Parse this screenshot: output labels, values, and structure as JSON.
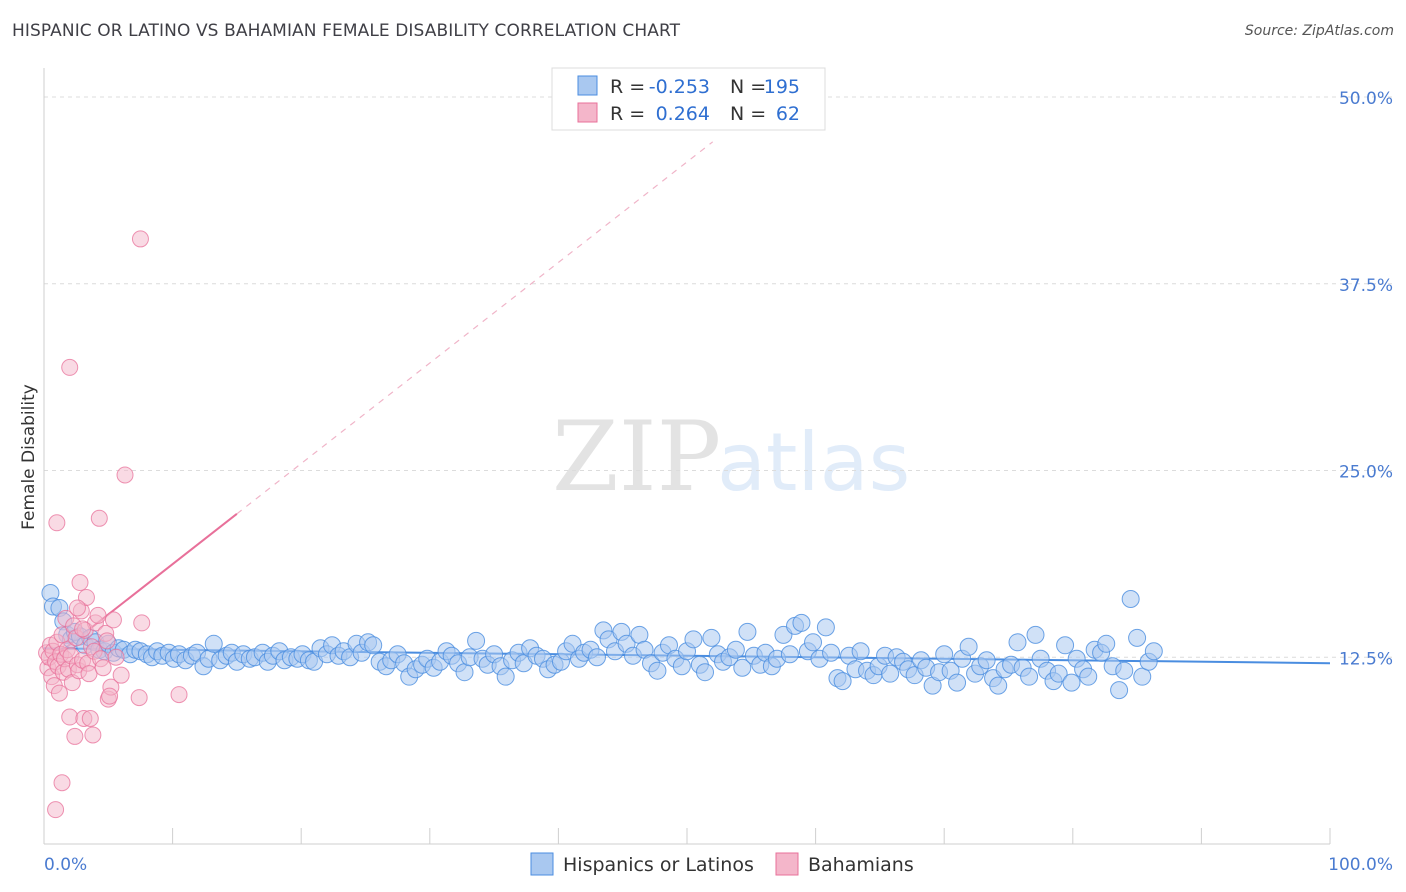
{
  "title": "HISPANIC OR LATINO VS BAHAMIAN FEMALE DISABILITY CORRELATION CHART",
  "source": "Source: ZipAtlas.com",
  "watermark": {
    "zip": "ZIP",
    "atlas": "atlas"
  },
  "colors": {
    "blue": "#4a8de0",
    "blue_fill": "#a9c8f0",
    "pink": "#e8709a",
    "pink_fill": "#f4b6ca",
    "grid": "#d9d9d9",
    "tick_text": "#4a7bd0"
  },
  "legend": {
    "rows": [
      {
        "r_label": "R =",
        "r_value": "-0.253",
        "n_label": "N =",
        "n_value": "195"
      },
      {
        "r_label": "R =",
        "r_value": "0.264",
        "n_label": "N =",
        "n_value": "62"
      }
    ]
  },
  "chart_data": {
    "type": "scatter",
    "xlabel": "",
    "ylabel": "Female Disability",
    "xlim": [
      0,
      100
    ],
    "ylim": [
      0,
      50
    ],
    "x_tick_labels": [
      "0.0%",
      "100.0%"
    ],
    "y_ticks": [
      12.5,
      25.0,
      37.5,
      50.0
    ],
    "y_tick_labels": [
      "12.5%",
      "25.0%",
      "37.5%",
      "50.0%"
    ],
    "grid": true,
    "legend_position": "top-center",
    "series": [
      {
        "name": "Hispanics or Latinos",
        "color": "#4a8de0",
        "trend": {
          "x": [
            0,
            100
          ],
          "y": [
            13.1,
            12.1
          ],
          "style": "solid"
        },
        "points": [
          [
            0.5,
            16.8
          ],
          [
            0.7,
            15.9
          ],
          [
            1.2,
            15.8
          ],
          [
            1.5,
            14.9
          ],
          [
            1.8,
            14.0
          ],
          [
            2.1,
            13.7
          ],
          [
            2.4,
            14.2
          ],
          [
            2.8,
            13.9
          ],
          [
            3.2,
            13.3
          ],
          [
            3.6,
            13.8
          ],
          [
            4.0,
            13.5
          ],
          [
            4.3,
            13.0
          ],
          [
            4.7,
            12.9
          ],
          [
            5.0,
            13.4
          ],
          [
            5.4,
            12.8
          ],
          [
            5.8,
            13.1
          ],
          [
            6.2,
            13.0
          ],
          [
            6.7,
            12.7
          ],
          [
            7.1,
            13.0
          ],
          [
            7.5,
            12.9
          ],
          [
            8.0,
            12.7
          ],
          [
            8.4,
            12.5
          ],
          [
            8.8,
            12.9
          ],
          [
            9.2,
            12.6
          ],
          [
            9.7,
            12.8
          ],
          [
            10.1,
            12.4
          ],
          [
            10.5,
            12.7
          ],
          [
            11.0,
            12.3
          ],
          [
            11.5,
            12.6
          ],
          [
            11.9,
            12.8
          ],
          [
            12.4,
            11.9
          ],
          [
            12.8,
            12.4
          ],
          [
            13.2,
            13.4
          ],
          [
            13.7,
            12.3
          ],
          [
            14.2,
            12.6
          ],
          [
            14.6,
            12.8
          ],
          [
            15.0,
            12.2
          ],
          [
            15.5,
            12.7
          ],
          [
            16.0,
            12.4
          ],
          [
            16.4,
            12.5
          ],
          [
            17.0,
            12.8
          ],
          [
            17.4,
            12.2
          ],
          [
            17.8,
            12.6
          ],
          [
            18.3,
            12.9
          ],
          [
            18.7,
            12.3
          ],
          [
            19.2,
            12.5
          ],
          [
            19.7,
            12.4
          ],
          [
            20.1,
            12.7
          ],
          [
            20.6,
            12.3
          ],
          [
            21.0,
            12.2
          ],
          [
            21.5,
            13.1
          ],
          [
            22.0,
            12.7
          ],
          [
            22.4,
            13.3
          ],
          [
            22.9,
            12.6
          ],
          [
            23.3,
            12.9
          ],
          [
            23.8,
            12.5
          ],
          [
            24.3,
            13.4
          ],
          [
            24.7,
            12.8
          ],
          [
            25.2,
            13.5
          ],
          [
            25.6,
            13.3
          ],
          [
            26.1,
            12.2
          ],
          [
            26.6,
            11.9
          ],
          [
            27.0,
            12.3
          ],
          [
            27.5,
            12.7
          ],
          [
            28.0,
            12.1
          ],
          [
            28.4,
            11.2
          ],
          [
            28.9,
            11.7
          ],
          [
            29.4,
            12.0
          ],
          [
            29.8,
            12.4
          ],
          [
            30.3,
            11.8
          ],
          [
            30.8,
            12.2
          ],
          [
            31.3,
            12.9
          ],
          [
            31.7,
            12.6
          ],
          [
            32.2,
            12.1
          ],
          [
            32.7,
            11.5
          ],
          [
            33.1,
            12.5
          ],
          [
            33.6,
            13.6
          ],
          [
            34.1,
            12.4
          ],
          [
            34.5,
            12.0
          ],
          [
            35.0,
            12.7
          ],
          [
            35.5,
            11.9
          ],
          [
            35.9,
            11.2
          ],
          [
            36.4,
            12.3
          ],
          [
            36.9,
            12.8
          ],
          [
            37.3,
            12.1
          ],
          [
            37.8,
            13.1
          ],
          [
            38.3,
            12.6
          ],
          [
            38.8,
            12.4
          ],
          [
            39.2,
            11.7
          ],
          [
            39.7,
            12.0
          ],
          [
            40.2,
            12.2
          ],
          [
            40.6,
            12.9
          ],
          [
            41.1,
            13.4
          ],
          [
            41.6,
            12.4
          ],
          [
            42.0,
            12.8
          ],
          [
            42.5,
            13.0
          ],
          [
            43.0,
            12.5
          ],
          [
            43.5,
            14.3
          ],
          [
            43.9,
            13.7
          ],
          [
            44.4,
            12.9
          ],
          [
            44.9,
            14.2
          ],
          [
            45.3,
            13.4
          ],
          [
            45.8,
            12.6
          ],
          [
            46.3,
            14.0
          ],
          [
            46.7,
            13.0
          ],
          [
            47.2,
            12.1
          ],
          [
            47.7,
            11.6
          ],
          [
            48.1,
            12.8
          ],
          [
            48.6,
            13.3
          ],
          [
            49.1,
            12.4
          ],
          [
            49.6,
            11.9
          ],
          [
            50.0,
            12.9
          ],
          [
            50.5,
            13.7
          ],
          [
            51.0,
            12.0
          ],
          [
            51.4,
            11.5
          ],
          [
            51.9,
            13.8
          ],
          [
            52.4,
            12.7
          ],
          [
            52.8,
            12.2
          ],
          [
            53.3,
            12.5
          ],
          [
            53.8,
            13.0
          ],
          [
            54.3,
            11.8
          ],
          [
            54.7,
            14.2
          ],
          [
            55.2,
            12.6
          ],
          [
            55.7,
            12.0
          ],
          [
            56.1,
            12.8
          ],
          [
            56.6,
            11.9
          ],
          [
            57.0,
            12.4
          ],
          [
            57.5,
            14.0
          ],
          [
            58.0,
            12.7
          ],
          [
            58.4,
            14.6
          ],
          [
            58.9,
            14.8
          ],
          [
            59.4,
            12.9
          ],
          [
            59.8,
            13.5
          ],
          [
            60.3,
            12.4
          ],
          [
            60.8,
            14.5
          ],
          [
            61.2,
            12.8
          ],
          [
            61.7,
            11.1
          ],
          [
            62.1,
            10.9
          ],
          [
            62.6,
            12.6
          ],
          [
            63.1,
            11.7
          ],
          [
            63.5,
            12.9
          ],
          [
            64.0,
            11.6
          ],
          [
            64.5,
            11.3
          ],
          [
            64.9,
            11.9
          ],
          [
            65.4,
            12.6
          ],
          [
            65.8,
            11.4
          ],
          [
            66.3,
            12.5
          ],
          [
            66.8,
            12.2
          ],
          [
            67.2,
            11.7
          ],
          [
            67.7,
            11.3
          ],
          [
            68.2,
            12.3
          ],
          [
            68.6,
            11.8
          ],
          [
            69.1,
            10.6
          ],
          [
            69.6,
            11.5
          ],
          [
            70.0,
            12.7
          ],
          [
            70.5,
            11.6
          ],
          [
            71.0,
            10.8
          ],
          [
            71.4,
            12.4
          ],
          [
            71.9,
            13.2
          ],
          [
            72.4,
            11.4
          ],
          [
            72.8,
            11.9
          ],
          [
            73.3,
            12.3
          ],
          [
            73.8,
            11.1
          ],
          [
            74.2,
            10.6
          ],
          [
            74.7,
            11.7
          ],
          [
            75.2,
            12.0
          ],
          [
            75.7,
            13.5
          ],
          [
            76.1,
            11.8
          ],
          [
            76.6,
            11.2
          ],
          [
            77.1,
            14.0
          ],
          [
            77.5,
            12.4
          ],
          [
            78.0,
            11.6
          ],
          [
            78.5,
            10.9
          ],
          [
            78.9,
            11.4
          ],
          [
            79.4,
            13.3
          ],
          [
            79.9,
            10.8
          ],
          [
            80.3,
            12.4
          ],
          [
            80.8,
            11.7
          ],
          [
            81.2,
            11.2
          ],
          [
            81.7,
            13.0
          ],
          [
            82.2,
            12.8
          ],
          [
            82.6,
            13.4
          ],
          [
            83.1,
            11.9
          ],
          [
            83.6,
            10.3
          ],
          [
            84.0,
            11.6
          ],
          [
            84.5,
            16.4
          ],
          [
            85.0,
            13.8
          ],
          [
            85.4,
            11.2
          ],
          [
            85.9,
            12.2
          ],
          [
            86.3,
            12.9
          ]
        ]
      },
      {
        "name": "Bahamians",
        "color": "#e8709a",
        "trend": {
          "x": [
            0,
            15
          ],
          "y": [
            12.0,
            22.1
          ],
          "style": "solid",
          "extended": {
            "x": [
              15,
              52
            ],
            "y": [
              22.1,
              47.0
            ],
            "style": "dashed"
          }
        },
        "points": [
          [
            0.2,
            12.8
          ],
          [
            0.3,
            11.8
          ],
          [
            0.4,
            12.5
          ],
          [
            0.5,
            13.3
          ],
          [
            0.6,
            11.2
          ],
          [
            0.7,
            12.9
          ],
          [
            0.8,
            10.6
          ],
          [
            0.9,
            12.2
          ],
          [
            1.0,
            13.5
          ],
          [
            1.1,
            11.9
          ],
          [
            1.2,
            10.1
          ],
          [
            1.3,
            12.7
          ],
          [
            1.4,
            14.0
          ],
          [
            1.5,
            11.5
          ],
          [
            1.6,
            12.4
          ],
          [
            1.7,
            15.1
          ],
          [
            1.8,
            13.0
          ],
          [
            1.9,
            11.7
          ],
          [
            2.0,
            8.5
          ],
          [
            2.1,
            12.6
          ],
          [
            2.2,
            10.8
          ],
          [
            2.3,
            14.6
          ],
          [
            2.4,
            7.2
          ],
          [
            2.5,
            13.8
          ],
          [
            2.6,
            12.0
          ],
          [
            2.7,
            11.6
          ],
          [
            2.8,
            17.5
          ],
          [
            2.9,
            15.6
          ],
          [
            3.0,
            12.3
          ],
          [
            3.1,
            8.4
          ],
          [
            3.2,
            14.3
          ],
          [
            3.3,
            16.5
          ],
          [
            3.4,
            12.1
          ],
          [
            3.5,
            11.4
          ],
          [
            3.6,
            8.4
          ],
          [
            3.7,
            13.2
          ],
          [
            3.8,
            7.3
          ],
          [
            3.9,
            12.9
          ],
          [
            4.0,
            14.8
          ],
          [
            4.2,
            15.3
          ],
          [
            4.4,
            12.4
          ],
          [
            4.6,
            11.8
          ],
          [
            4.8,
            14.1
          ],
          [
            5.0,
            9.7
          ],
          [
            5.2,
            10.5
          ],
          [
            5.4,
            15.0
          ],
          [
            1.0,
            21.5
          ],
          [
            2.0,
            31.9
          ],
          [
            4.3,
            21.8
          ],
          [
            6.3,
            24.7
          ],
          [
            7.5,
            40.5
          ],
          [
            0.9,
            2.3
          ],
          [
            1.4,
            4.1
          ],
          [
            7.4,
            9.8
          ],
          [
            10.5,
            10.0
          ],
          [
            6.0,
            11.3
          ],
          [
            5.6,
            12.5
          ],
          [
            4.9,
            13.6
          ],
          [
            3.0,
            14.4
          ],
          [
            2.6,
            15.8
          ],
          [
            7.6,
            14.8
          ],
          [
            5.1,
            9.9
          ]
        ]
      }
    ]
  },
  "bottom_legend": [
    {
      "label": "Hispanics or Latinos"
    },
    {
      "label": "Bahamians"
    }
  ]
}
